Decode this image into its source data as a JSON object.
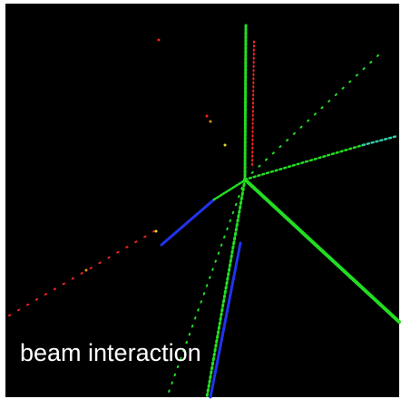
{
  "caption": "beam interaction"
}
